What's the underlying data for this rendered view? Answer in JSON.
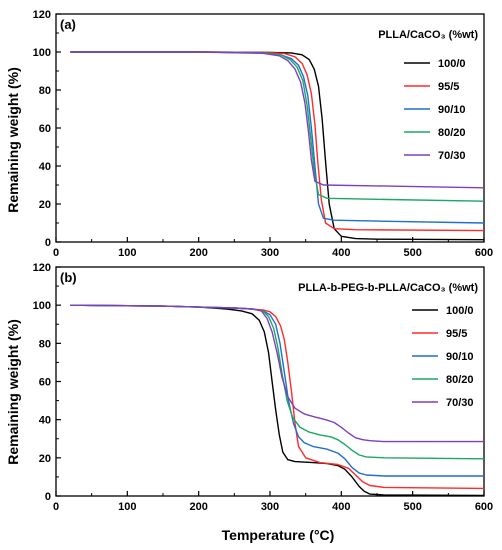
{
  "figure": {
    "ylabel": "Remaining weight (%)",
    "xlabel": "Temperature (°C)"
  },
  "chart_data": [
    {
      "type": "line",
      "panel_label": "(a)",
      "legend_title": "PLLA/CaCO₃ (%wt)",
      "legend_placement": "right",
      "xlim": [
        0,
        600
      ],
      "ylim": [
        0,
        120
      ],
      "x_ticks": [
        0,
        100,
        200,
        300,
        400,
        500,
        600
      ],
      "y_ticks": [
        0,
        20,
        40,
        60,
        80,
        100,
        120
      ],
      "grid": false,
      "series": [
        {
          "name": "100/0",
          "color": "#000000",
          "x": [
            20,
            200,
            300,
            330,
            345,
            355,
            362,
            368,
            373,
            378,
            383,
            390,
            400,
            420,
            450,
            600
          ],
          "y": [
            100,
            100,
            99.8,
            99.5,
            98.5,
            96,
            91,
            82,
            65,
            42,
            20,
            7,
            3,
            1.8,
            1.5,
            1.2
          ]
        },
        {
          "name": "95/5",
          "color": "#ff2a2a",
          "x": [
            20,
            200,
            290,
            320,
            335,
            345,
            352,
            358,
            363,
            367,
            372,
            378,
            390,
            420,
            600
          ],
          "y": [
            100,
            100,
            99.8,
            99.2,
            97.5,
            94,
            88,
            78,
            62,
            42,
            22,
            10,
            7,
            6.5,
            6
          ]
        },
        {
          "name": "90/10",
          "color": "#1f6fd1",
          "x": [
            20,
            200,
            290,
            315,
            330,
            340,
            347,
            353,
            358,
            363,
            368,
            375,
            390,
            450,
            600
          ],
          "y": [
            100,
            100,
            99.6,
            98.5,
            96.5,
            93,
            87,
            77,
            60,
            40,
            20,
            12.5,
            11.5,
            11,
            10
          ]
        },
        {
          "name": "80/20",
          "color": "#1aa863",
          "x": [
            20,
            200,
            290,
            315,
            328,
            338,
            346,
            352,
            357,
            362,
            368,
            380,
            450,
            600
          ],
          "y": [
            100,
            100,
            99.5,
            98.5,
            96,
            92,
            85,
            72,
            55,
            37,
            25,
            23,
            22.5,
            21.5
          ]
        },
        {
          "name": "70/30",
          "color": "#7e3fbf",
          "x": [
            20,
            200,
            290,
            313,
            325,
            335,
            343,
            349,
            354,
            358,
            363,
            375,
            450,
            600
          ],
          "y": [
            100,
            100,
            99.3,
            98,
            95.5,
            91,
            84,
            73,
            58,
            43,
            32,
            30,
            29.5,
            28.5
          ]
        }
      ]
    },
    {
      "type": "line",
      "panel_label": "(b)",
      "legend_title": "PLLA-b-PEG-b-PLLA/CaCO₃ (%wt)",
      "legend_placement": "right",
      "xlim": [
        0,
        600
      ],
      "ylim": [
        0,
        120
      ],
      "x_ticks": [
        0,
        100,
        200,
        300,
        400,
        500,
        600
      ],
      "y_ticks": [
        0,
        20,
        40,
        60,
        80,
        100,
        120
      ],
      "grid": false,
      "series": [
        {
          "name": "100/0",
          "color": "#000000",
          "x": [
            20,
            150,
            200,
            240,
            260,
            275,
            285,
            292,
            298,
            303,
            308,
            313,
            318,
            325,
            335,
            360,
            380,
            395,
            405,
            415,
            425,
            432,
            440,
            460,
            600
          ],
          "y": [
            100,
            99.5,
            99,
            98,
            97,
            95.5,
            92,
            86,
            75,
            60,
            45,
            32,
            23,
            19,
            18,
            17.5,
            17,
            16,
            14,
            10,
            5,
            2.5,
            1,
            0.5,
            0.3
          ]
        },
        {
          "name": "95/5",
          "color": "#ff2a2a",
          "x": [
            20,
            150,
            200,
            250,
            275,
            290,
            300,
            308,
            315,
            320,
            325,
            330,
            335,
            340,
            350,
            370,
            395,
            410,
            420,
            430,
            440,
            460,
            600
          ],
          "y": [
            100,
            99.5,
            99,
            98.5,
            98,
            97.5,
            96.5,
            94,
            89,
            82,
            70,
            55,
            38,
            26,
            20,
            17.5,
            16.5,
            14.5,
            11,
            7.5,
            5.5,
            4.5,
            4
          ]
        },
        {
          "name": "90/10",
          "color": "#1f6fd1",
          "x": [
            20,
            150,
            200,
            250,
            275,
            290,
            300,
            308,
            314,
            320,
            326,
            333,
            340,
            348,
            360,
            380,
            395,
            405,
            415,
            425,
            435,
            460,
            600
          ],
          "y": [
            100,
            99.5,
            99,
            98.5,
            98,
            97,
            95,
            90,
            80,
            65,
            50,
            38,
            31,
            28,
            26,
            24.5,
            22.5,
            19.5,
            15,
            12,
            11,
            10.5,
            10.5
          ]
        },
        {
          "name": "80/20",
          "color": "#1aa863",
          "x": [
            20,
            150,
            200,
            250,
            275,
            290,
            298,
            305,
            311,
            317,
            324,
            332,
            342,
            355,
            370,
            385,
            395,
            405,
            415,
            425,
            435,
            460,
            600
          ],
          "y": [
            100,
            99.5,
            99,
            98.5,
            98,
            97,
            94,
            88,
            78,
            64,
            50,
            41,
            36,
            33.5,
            32,
            31,
            29.5,
            27,
            24,
            21.5,
            20.5,
            20,
            19.5
          ]
        },
        {
          "name": "70/30",
          "color": "#7e3fbf",
          "x": [
            20,
            150,
            200,
            250,
            275,
            288,
            296,
            303,
            310,
            317,
            325,
            335,
            348,
            362,
            378,
            390,
            400,
            410,
            420,
            430,
            440,
            460,
            600
          ],
          "y": [
            100,
            99.5,
            99,
            98.5,
            98,
            97,
            93,
            86,
            75,
            62,
            52,
            46,
            43,
            41.5,
            40,
            38.5,
            36,
            33,
            30.5,
            29.5,
            29,
            28.5,
            28.5
          ]
        }
      ]
    }
  ]
}
